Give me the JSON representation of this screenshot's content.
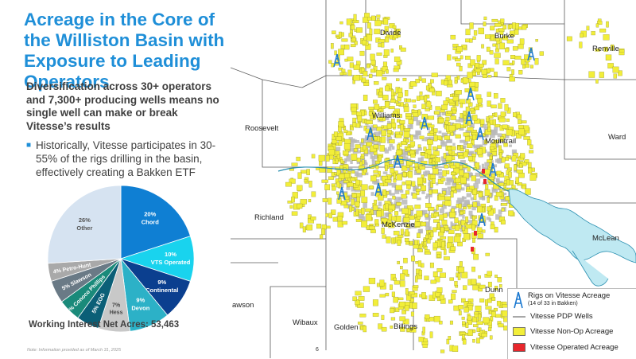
{
  "slide": {
    "title": "Acreage in the Core of the Williston Basin with Exposure to Leading Operators",
    "subtitle": "Diversification across 30+ operators and 7,300+ producing wells means no single well can make or break Vitesse’s results",
    "bullet": "Historically, Vitesse participates in 30-55% of the rigs drilling in the basin, effectively creating a Bakken ETF",
    "pie_total": "Working Interest Net Acres: 53,463",
    "note": "Note: Information provided as of March 31, 2025",
    "page_number": "6"
  },
  "chart_data": {
    "type": "pie",
    "slices": [
      {
        "pct": "20%",
        "name": "Chord",
        "value": 20,
        "color": "#0f7fd3"
      },
      {
        "pct": "10%",
        "name": "VTS Operated",
        "value": 10,
        "color": "#19d3ee"
      },
      {
        "pct": "9%",
        "name": "Continental",
        "value": 9,
        "color": "#0b3f8f"
      },
      {
        "pct": "9%",
        "name": "Devon",
        "value": 9,
        "color": "#2cb1c7"
      },
      {
        "pct": "7%",
        "name": "Hess",
        "value": 7,
        "color": "#c8c8c8"
      },
      {
        "pct": "5%",
        "name": "EOG",
        "value": 5,
        "color": "#0b5f77"
      },
      {
        "pct": "5%",
        "name": "Conoco Phillips",
        "value": 5,
        "color": "#1a8a7a"
      },
      {
        "pct": "5%",
        "name": "Slawson",
        "value": 5,
        "color": "#6a7a86"
      },
      {
        "pct": "4%",
        "name": "Petro-Hunt",
        "value": 4,
        "color": "#a9a9a9"
      },
      {
        "pct": "26%",
        "name": "Other",
        "value": 26,
        "color": "#d6e3f1"
      }
    ]
  },
  "map": {
    "counties": [
      "Divide",
      "Burke",
      "Renville",
      "Williams",
      "Mountrail",
      "Ward",
      "Roosevelt",
      "Richland",
      "McKenzie",
      "McLean",
      "Dunn",
      "Wibaux",
      "Golden",
      "Billings"
    ],
    "partial_county": "awson",
    "colors": {
      "water": "#bfe9f2",
      "non_op": "#f2ee39",
      "operated": "#e8262c",
      "pdp": "#b8b8b8",
      "rig": "#1a78d0"
    },
    "legend": {
      "rigs": "Rigs on Vitesse Acreage",
      "rigs_sub": "(14 of 33 in Bakken)",
      "pdp": "Vitesse PDP Wells",
      "non_op": "Vitesse Non-Op Acreage",
      "operated": "Vitesse Operated Acreage"
    }
  }
}
